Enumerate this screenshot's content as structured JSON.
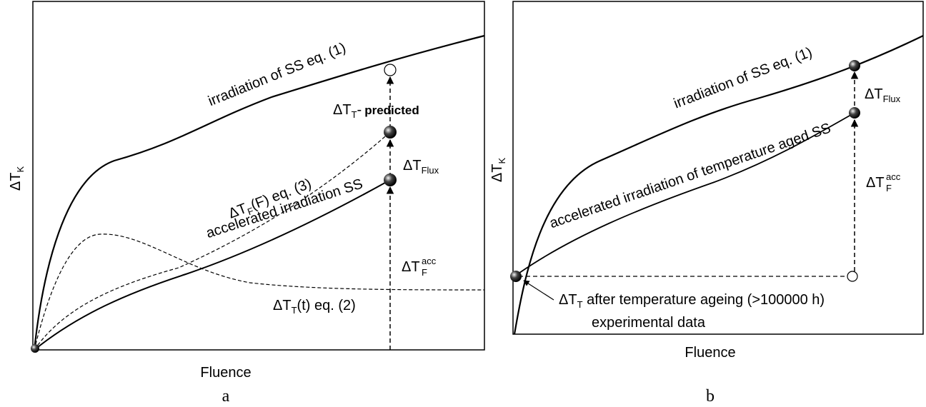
{
  "panel_a": {
    "caption": "a",
    "ylabel_main": "ΔT",
    "ylabel_sub": "K",
    "xlabel": "Fluence",
    "curve_ss": "irradiation of SS eq. (1)",
    "curve_accel": "accelerated irradiation SS",
    "curve_flux_main": "ΔT",
    "curve_flux_sub": "F",
    "curve_flux_rest": "(F) eq. (3)",
    "curve_time_main": "ΔT",
    "curve_time_sub": "T",
    "curve_time_rest": "(t) eq. (2)",
    "pred_main": "ΔT",
    "pred_sub": "T",
    "pred_dash": "-",
    "pred_bold": "predicted",
    "flux_main": "ΔT",
    "flux_sub": "Flux",
    "acc_main": "ΔT",
    "acc_sup": "acc",
    "acc_sub": "F"
  },
  "panel_b": {
    "caption": "b",
    "ylabel_main": "ΔT",
    "ylabel_sub": "K",
    "xlabel": "Fluence",
    "curve_ss": "irradiation of SS eq. (1)",
    "curve_accel": "accelerated irradiation of temperature aged SS",
    "flux_main": "ΔT",
    "flux_sub": "Flux",
    "acc_main": "ΔT",
    "acc_sup": "acc",
    "acc_sub": "F",
    "ageing_main": "ΔT",
    "ageing_sub": "T",
    "ageing_rest": " after temperature ageing (>100000 h)",
    "experimental": "experimental data"
  }
}
